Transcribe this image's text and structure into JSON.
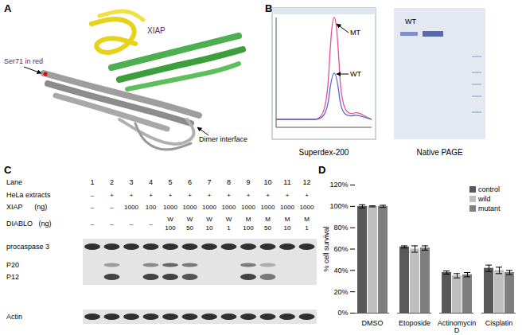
{
  "panels": {
    "A": {
      "label": "A",
      "texts": {
        "xiap": "XIAP",
        "ser71": "Ser71 in red",
        "dimer": "Dimer interface"
      }
    },
    "B": {
      "label": "B",
      "chromatogram": {
        "peaks": [
          "MT",
          "WT"
        ],
        "caption": "Superdex-200"
      },
      "gel": {
        "band_label": "WT",
        "caption": "Native PAGE"
      }
    },
    "C": {
      "label": "C",
      "table": {
        "header": "Lane",
        "lanes": [
          1,
          2,
          3,
          4,
          5,
          6,
          7,
          8,
          9,
          10,
          11,
          12
        ],
        "rows": [
          {
            "label": "HeLa extracts",
            "values": [
              "–",
              "+",
              "+",
              "+",
              "+",
              "+",
              "+",
              "+",
              "+",
              "+",
              "+",
              "+"
            ]
          },
          {
            "label": "XIAP      (ng)",
            "values": [
              "–",
              "–",
              "1000",
              "100",
              "1000",
              "1000",
              "1000",
              "1000",
              "1000",
              "1000",
              "1000",
              "1000"
            ]
          },
          {
            "label": "DIABLO   (ng)",
            "values": [
              "–",
              "–",
              "–",
              "–",
              "W 100",
              "W 50",
              "W 10",
              "W 1",
              "M 100",
              "M 50",
              "M 10",
              "M 1"
            ]
          }
        ]
      },
      "blot": {
        "bands": [
          {
            "label": "procaspase 3",
            "intensity": [
              1,
              1,
              1,
              1,
              1,
              1,
              1,
              1,
              1,
              1,
              1,
              1
            ]
          },
          {
            "label": "P20",
            "intensity": [
              0,
              0.4,
              0,
              0.5,
              0.7,
              0.6,
              0,
              0,
              0.6,
              0.3,
              0,
              0
            ]
          },
          {
            "label": "P12",
            "intensity": [
              0,
              0.9,
              0,
              0.9,
              0.9,
              0.8,
              0,
              0,
              0.9,
              0.6,
              0,
              0
            ]
          },
          {
            "label": "Actin",
            "intensity": [
              1,
              1,
              1,
              1,
              1,
              1,
              1,
              1,
              1,
              1,
              1,
              1
            ]
          }
        ]
      }
    },
    "D": {
      "label": "D"
    }
  },
  "chart_data": {
    "type": "bar",
    "y_label": "% cell survival",
    "categories": [
      "DMSO",
      "Etoposide",
      "Actinomycin D",
      "Cisplatin"
    ],
    "series": [
      {
        "name": "control",
        "color": "#595959",
        "values": [
          100,
          62,
          38,
          42
        ],
        "errors": [
          1.5,
          1,
          1.5,
          3
        ]
      },
      {
        "name": "wild",
        "color": "#bfbfbf",
        "values": [
          100,
          60,
          35,
          40
        ],
        "errors": [
          0.5,
          3,
          2,
          3
        ]
      },
      {
        "name": "mutant",
        "color": "#7f7f7f",
        "values": [
          100,
          61,
          36,
          38
        ],
        "errors": [
          1,
          2,
          2,
          2
        ]
      }
    ],
    "ylim": [
      0,
      120
    ],
    "yticks": [
      {
        "value": 0,
        "label": "0%"
      },
      {
        "value": 20,
        "label": "20%"
      },
      {
        "value": 40,
        "label": "40%"
      },
      {
        "value": 60,
        "label": "60%"
      },
      {
        "value": 80,
        "label": "80%"
      },
      {
        "value": 100,
        "label": "100%"
      },
      {
        "value": 120,
        "label": "120%"
      }
    ],
    "grid": false,
    "legend": "right"
  }
}
